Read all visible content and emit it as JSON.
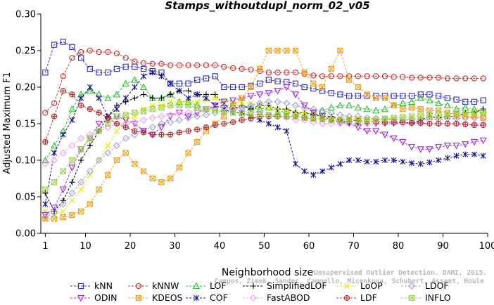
{
  "chart_data": {
    "type": "line",
    "title": "Stamps_withoutdupl_norm_02_v05",
    "xlabel": "Neighborhood size",
    "ylabel": "Adjusted Maximum F1",
    "xlim": [
      0,
      100
    ],
    "ylim": [
      0,
      0.3
    ],
    "x_ticks": [
      1,
      10,
      20,
      30,
      40,
      50,
      60,
      70,
      80,
      90,
      100
    ],
    "y_ticks": [
      "0.00",
      "0.05",
      "0.10",
      "0.15",
      "0.20",
      "0.25",
      "0.30"
    ],
    "grid": false,
    "legend_position": "bottom",
    "x": [
      1,
      3,
      5,
      7,
      9,
      11,
      13,
      15,
      17,
      19,
      21,
      23,
      25,
      27,
      29,
      31,
      33,
      35,
      37,
      39,
      41,
      43,
      45,
      47,
      49,
      51,
      53,
      55,
      57,
      59,
      61,
      63,
      65,
      67,
      69,
      71,
      73,
      75,
      77,
      79,
      81,
      83,
      85,
      87,
      89,
      91,
      93,
      95,
      97,
      99
    ],
    "series": [
      {
        "name": "kNN",
        "color": "#2b2bd0",
        "marker": "square",
        "values": [
          0.22,
          0.258,
          0.262,
          0.255,
          0.24,
          0.225,
          0.22,
          0.22,
          0.225,
          0.228,
          0.228,
          0.225,
          0.222,
          0.22,
          0.205,
          0.205,
          0.205,
          0.21,
          0.212,
          0.215,
          0.2,
          0.2,
          0.2,
          0.202,
          0.205,
          0.21,
          0.208,
          0.207,
          0.205,
          0.2,
          0.198,
          0.195,
          0.192,
          0.19,
          0.188,
          0.188,
          0.188,
          0.188,
          0.188,
          0.188,
          0.188,
          0.188,
          0.19,
          0.19,
          0.188,
          0.185,
          0.183,
          0.18,
          0.18,
          0.182
        ]
      },
      {
        "name": "kNNW",
        "color": "#d42a2a",
        "marker": "circle",
        "values": [
          0.165,
          0.178,
          0.215,
          0.24,
          0.248,
          0.25,
          0.248,
          0.248,
          0.246,
          0.24,
          0.235,
          0.233,
          0.232,
          0.232,
          0.23,
          0.23,
          0.23,
          0.23,
          0.23,
          0.23,
          0.228,
          0.226,
          0.225,
          0.224,
          0.222,
          0.22,
          0.22,
          0.22,
          0.22,
          0.218,
          0.216,
          0.215,
          0.215,
          0.215,
          0.215,
          0.215,
          0.215,
          0.215,
          0.215,
          0.214,
          0.214,
          0.213,
          0.213,
          0.213,
          0.213,
          0.212,
          0.212,
          0.212,
          0.212,
          0.212
        ]
      },
      {
        "name": "LOF",
        "color": "#2fbf2f",
        "marker": "triangle-up",
        "values": [
          0.1,
          0.12,
          0.14,
          0.17,
          0.19,
          0.195,
          0.19,
          0.185,
          0.19,
          0.205,
          0.21,
          0.2,
          0.185,
          0.185,
          0.19,
          0.18,
          0.18,
          0.175,
          0.17,
          0.172,
          0.175,
          0.175,
          0.175,
          0.172,
          0.17,
          0.172,
          0.165,
          0.168,
          0.165,
          0.162,
          0.165,
          0.168,
          0.172,
          0.175,
          0.175,
          0.172,
          0.17,
          0.168,
          0.17,
          0.175,
          0.178,
          0.18,
          0.185,
          0.182,
          0.178,
          0.175,
          0.17,
          0.172,
          0.17,
          0.168
        ]
      },
      {
        "name": "SimplifiedLOF",
        "color": "#000000",
        "marker": "plus",
        "values": [
          0.055,
          0.03,
          0.045,
          0.07,
          0.1,
          0.12,
          0.14,
          0.16,
          0.175,
          0.18,
          0.185,
          0.19,
          0.185,
          0.185,
          0.19,
          0.195,
          0.195,
          0.19,
          0.19,
          0.19,
          0.175,
          0.17,
          0.175,
          0.17,
          0.175,
          0.175,
          0.17,
          0.17,
          0.165,
          0.165,
          0.162,
          0.16,
          0.16,
          0.155,
          0.15,
          0.15,
          0.15,
          0.15,
          0.15,
          0.15,
          0.152,
          0.15,
          0.155,
          0.16,
          0.158,
          0.16,
          0.16,
          0.165,
          0.165,
          0.17
        ]
      },
      {
        "name": "LoOP",
        "color": "#e6e600",
        "marker": "cross",
        "values": [
          0.03,
          0.025,
          0.03,
          0.045,
          0.06,
          0.08,
          0.1,
          0.12,
          0.14,
          0.155,
          0.16,
          0.17,
          0.175,
          0.175,
          0.18,
          0.18,
          0.18,
          0.18,
          0.182,
          0.185,
          0.182,
          0.18,
          0.178,
          0.178,
          0.175,
          0.172,
          0.17,
          0.168,
          0.165,
          0.165,
          0.162,
          0.16,
          0.16,
          0.158,
          0.158,
          0.157,
          0.157,
          0.156,
          0.156,
          0.156,
          0.156,
          0.156,
          0.158,
          0.158,
          0.158,
          0.16,
          0.16,
          0.162,
          0.162,
          0.163
        ]
      },
      {
        "name": "LDOF",
        "color": "#a0a0e0",
        "marker": "diamond",
        "values": [
          0.022,
          0.028,
          0.04,
          0.055,
          0.07,
          0.085,
          0.1,
          0.11,
          0.12,
          0.13,
          0.135,
          0.14,
          0.145,
          0.15,
          0.152,
          0.155,
          0.158,
          0.16,
          0.162,
          0.165,
          0.168,
          0.17,
          0.172,
          0.175,
          0.178,
          0.18,
          0.18,
          0.178,
          0.175,
          0.172,
          0.17,
          0.168,
          0.165,
          0.162,
          0.16,
          0.16,
          0.158,
          0.157,
          0.156,
          0.155,
          0.155,
          0.155,
          0.155,
          0.156,
          0.156,
          0.157,
          0.157,
          0.158,
          0.158,
          0.158
        ]
      },
      {
        "name": "ODIN",
        "color": "#9a2fd4",
        "marker": "triangle-down",
        "values": [
          0.025,
          0.035,
          0.06,
          0.09,
          0.115,
          0.13,
          0.15,
          0.155,
          0.16,
          0.155,
          0.15,
          0.14,
          0.135,
          0.145,
          0.16,
          0.165,
          0.16,
          0.165,
          0.17,
          0.175,
          0.18,
          0.182,
          0.185,
          0.188,
          0.19,
          0.192,
          0.195,
          0.2,
          0.19,
          0.175,
          0.165,
          0.16,
          0.155,
          0.152,
          0.15,
          0.145,
          0.14,
          0.14,
          0.135,
          0.13,
          0.125,
          0.118,
          0.115,
          0.115,
          0.118,
          0.12,
          0.12,
          0.122,
          0.125,
          0.127
        ]
      },
      {
        "name": "KDEOS",
        "color": "#f0a020",
        "marker": "square-cross",
        "values": [
          0.02,
          0.02,
          0.022,
          0.025,
          0.03,
          0.04,
          0.06,
          0.08,
          0.1,
          0.11,
          0.095,
          0.085,
          0.075,
          0.07,
          0.075,
          0.09,
          0.11,
          0.125,
          0.14,
          0.15,
          0.16,
          0.175,
          0.185,
          0.2,
          0.225,
          0.25,
          0.25,
          0.25,
          0.25,
          0.22,
          0.205,
          0.2,
          0.225,
          0.25,
          0.21,
          0.2,
          0.19,
          0.185,
          0.185,
          0.175,
          0.17,
          0.172,
          0.17,
          0.168,
          0.168,
          0.165,
          0.162,
          0.16,
          0.16,
          0.158
        ]
      },
      {
        "name": "COF",
        "color": "#10108a",
        "marker": "asterisk",
        "values": [
          0.04,
          0.11,
          0.135,
          0.155,
          0.185,
          0.2,
          0.185,
          0.16,
          0.17,
          0.185,
          0.2,
          0.215,
          0.22,
          0.215,
          0.205,
          0.195,
          0.185,
          0.19,
          0.185,
          0.175,
          0.17,
          0.165,
          0.165,
          0.16,
          0.155,
          0.15,
          0.145,
          0.14,
          0.095,
          0.085,
          0.08,
          0.085,
          0.09,
          0.095,
          0.1,
          0.1,
          0.098,
          0.098,
          0.1,
          0.1,
          0.098,
          0.096,
          0.095,
          0.097,
          0.1,
          0.103,
          0.106,
          0.108,
          0.108,
          0.106
        ]
      },
      {
        "name": "FastABOD",
        "color": "#f4a0f0",
        "marker": "diamond",
        "values": [
          0.095,
          0.1,
          0.11,
          0.12,
          0.13,
          0.135,
          0.14,
          0.145,
          0.15,
          0.15,
          0.152,
          0.155,
          0.158,
          0.16,
          0.162,
          0.165,
          0.165,
          0.168,
          0.17,
          0.172,
          0.172,
          0.17,
          0.168,
          0.165,
          0.165,
          0.162,
          0.16,
          0.158,
          0.155,
          0.155,
          0.152,
          0.15,
          0.15,
          0.15,
          0.15,
          0.15,
          0.15,
          0.15,
          0.15,
          0.15,
          0.15,
          0.15,
          0.15,
          0.15,
          0.15,
          0.15,
          0.15,
          0.15,
          0.15,
          0.15
        ]
      },
      {
        "name": "LDF",
        "color": "#b03030",
        "marker": "circle-plus",
        "values": [
          0.125,
          0.16,
          0.195,
          0.19,
          0.175,
          0.17,
          0.165,
          0.158,
          0.15,
          0.145,
          0.14,
          0.138,
          0.135,
          0.135,
          0.135,
          0.138,
          0.14,
          0.142,
          0.145,
          0.148,
          0.15,
          0.152,
          0.155,
          0.157,
          0.16,
          0.16,
          0.16,
          0.16,
          0.16,
          0.158,
          0.157,
          0.156,
          0.155,
          0.155,
          0.155,
          0.154,
          0.153,
          0.153,
          0.152,
          0.152,
          0.152,
          0.151,
          0.151,
          0.15,
          0.15,
          0.15,
          0.15,
          0.149,
          0.148,
          0.148
        ]
      },
      {
        "name": "INFLO",
        "color": "#9ad04a",
        "marker": "square-x",
        "values": [
          0.06,
          0.07,
          0.085,
          0.1,
          0.115,
          0.13,
          0.14,
          0.15,
          0.16,
          0.162,
          0.165,
          0.167,
          0.17,
          0.172,
          0.175,
          0.175,
          0.175,
          0.172,
          0.17,
          0.168,
          0.166,
          0.165,
          0.164,
          0.163,
          0.162,
          0.162,
          0.161,
          0.16,
          0.16,
          0.158,
          0.157,
          0.156,
          0.155,
          0.155,
          0.155,
          0.155,
          0.155,
          0.156,
          0.157,
          0.158,
          0.159,
          0.16,
          0.161,
          0.162,
          0.163,
          0.163,
          0.164,
          0.165,
          0.165,
          0.166
        ]
      }
    ],
    "legend": [
      [
        "kNN",
        "kNNW",
        "LOF",
        "SimplifiedLOF",
        "LoOP",
        "LDOF"
      ],
      [
        "ODIN",
        "KDEOS",
        "COF",
        "FastABOD",
        "LDF",
        "INFLO"
      ]
    ],
    "watermark": [
      "Unsupervised Outlier Detection. DAMI, 2015.",
      "Campos, Zimek, Sander, Campello, Micenkova, Schubert, Assent, Houle"
    ]
  }
}
